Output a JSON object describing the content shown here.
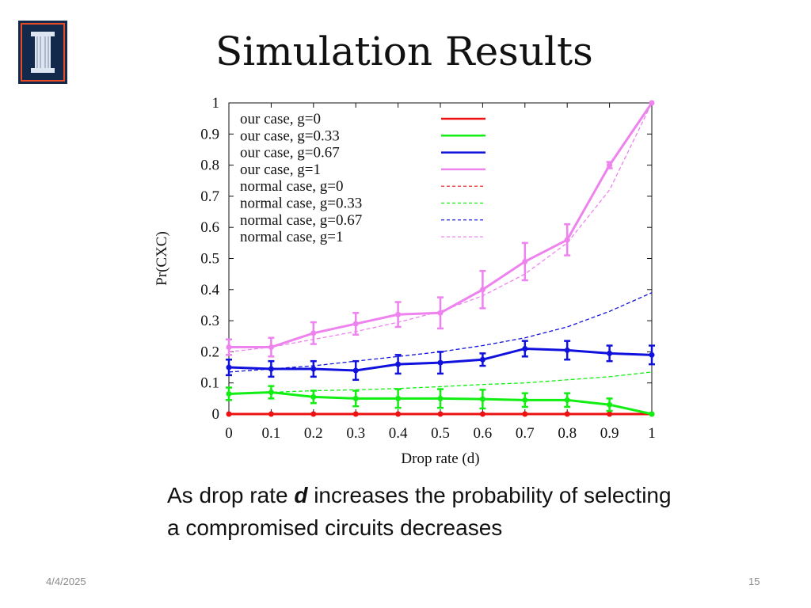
{
  "slide": {
    "title": "Simulation Results",
    "caption_pre": "As drop rate ",
    "caption_em": "d",
    "caption_post": " increases the probability of selecting a compromised circuits decreases",
    "date": "4/4/2025",
    "page": "15",
    "logo": "university-pillar-logo"
  },
  "chart_data": {
    "type": "line",
    "xlabel": "Drop rate (d)",
    "ylabel": "Pr(CXC)",
    "xlim": [
      0,
      1
    ],
    "ylim": [
      0,
      1
    ],
    "grid": false,
    "legend": "top-left",
    "x": [
      0,
      0.1,
      0.2,
      0.3,
      0.4,
      0.5,
      0.6,
      0.7,
      0.8,
      0.9,
      1
    ],
    "xticks": [
      "0",
      "0.1",
      "0.2",
      "0.3",
      "0.4",
      "0.5",
      "0.6",
      "0.7",
      "0.8",
      "0.9",
      "1"
    ],
    "yticks": [
      "0",
      "0.1",
      "0.2",
      "0.3",
      "0.4",
      "0.5",
      "0.6",
      "0.7",
      "0.8",
      "0.9",
      "1"
    ],
    "series": [
      {
        "name": "our case, g=0",
        "color": "#ee1111",
        "style": "solid",
        "marker": "plus",
        "values": [
          0,
          0,
          0,
          0,
          0,
          0,
          0,
          0,
          0,
          0,
          0
        ],
        "err": [
          0,
          0,
          0,
          0,
          0,
          0,
          0,
          0,
          0,
          0,
          0
        ]
      },
      {
        "name": "our case, g=0.33",
        "color": "#11ee11",
        "style": "solid",
        "marker": "x",
        "values": [
          0.065,
          0.07,
          0.055,
          0.05,
          0.05,
          0.05,
          0.048,
          0.045,
          0.045,
          0.03,
          0
        ],
        "err": [
          0.02,
          0.02,
          0.02,
          0.025,
          0.03,
          0.03,
          0.03,
          0.022,
          0.022,
          0.02,
          0
        ]
      },
      {
        "name": "our case, g=0.67",
        "color": "#1111dd",
        "style": "solid",
        "marker": "square",
        "values": [
          0.15,
          0.145,
          0.145,
          0.14,
          0.16,
          0.165,
          0.175,
          0.21,
          0.205,
          0.195,
          0.19
        ],
        "err": [
          0.025,
          0.025,
          0.025,
          0.03,
          0.03,
          0.035,
          0.02,
          0.025,
          0.03,
          0.025,
          0.03
        ]
      },
      {
        "name": "our case, g=1",
        "color": "#ee82ee",
        "style": "solid",
        "marker": "triangle",
        "values": [
          0.215,
          0.215,
          0.26,
          0.29,
          0.32,
          0.325,
          0.4,
          0.49,
          0.56,
          0.8,
          1.0
        ],
        "err": [
          0.025,
          0.03,
          0.035,
          0.035,
          0.04,
          0.05,
          0.06,
          0.06,
          0.05,
          0.01,
          0
        ]
      },
      {
        "name": "normal case, g=0",
        "color": "#ee1111",
        "style": "dashed",
        "values": [
          0,
          0,
          0,
          0,
          0,
          0,
          0,
          0,
          0,
          0,
          0
        ]
      },
      {
        "name": "normal case, g=0.33",
        "color": "#11ee11",
        "style": "dashed",
        "values": [
          0.065,
          0.07,
          0.075,
          0.078,
          0.082,
          0.088,
          0.095,
          0.1,
          0.11,
          0.12,
          0.135
        ]
      },
      {
        "name": "normal case, g=0.67",
        "color": "#1111dd",
        "style": "dashed",
        "values": [
          0.135,
          0.145,
          0.155,
          0.17,
          0.185,
          0.2,
          0.22,
          0.245,
          0.28,
          0.33,
          0.39
        ]
      },
      {
        "name": "normal case, g=1",
        "color": "#ee82ee",
        "style": "dashed",
        "values": [
          0.2,
          0.215,
          0.24,
          0.265,
          0.295,
          0.33,
          0.38,
          0.45,
          0.55,
          0.72,
          1.0
        ]
      }
    ]
  }
}
